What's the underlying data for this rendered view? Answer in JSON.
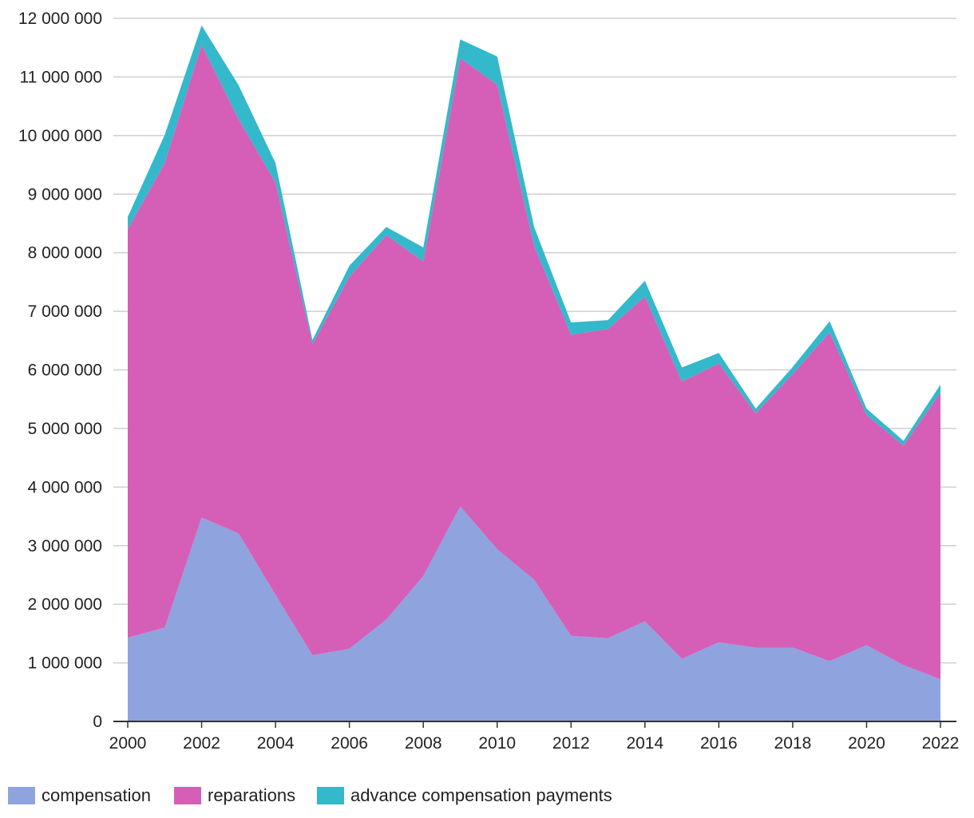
{
  "chart_data": {
    "type": "area",
    "stacked": true,
    "title": "",
    "xlabel": "",
    "ylabel": "",
    "ylim": [
      0,
      12000000
    ],
    "grid": true,
    "legend_position": "bottom-left",
    "x": [
      2000,
      2001,
      2002,
      2003,
      2004,
      2005,
      2006,
      2007,
      2008,
      2009,
      2010,
      2011,
      2012,
      2013,
      2014,
      2015,
      2016,
      2017,
      2018,
      2019,
      2020,
      2021,
      2022
    ],
    "x_tick_labels": [
      "2000",
      "2002",
      "2004",
      "2006",
      "2008",
      "2010",
      "2012",
      "2014",
      "2016",
      "2018",
      "2020",
      "2022"
    ],
    "y_ticks": [
      0,
      1000000,
      2000000,
      3000000,
      4000000,
      5000000,
      6000000,
      7000000,
      8000000,
      9000000,
      10000000,
      11000000,
      12000000
    ],
    "y_tick_labels": [
      "0",
      "1 000 000",
      "2 000 000",
      "3 000 000",
      "4 000 000",
      "5 000 000",
      "6 000 000",
      "7 000 000",
      "8 000 000",
      "9 000 000",
      "10 000 000",
      "11 000 000",
      "12 000 000"
    ],
    "series": [
      {
        "name": "compensation",
        "color": "#8fa3df",
        "values": [
          1430000,
          1600000,
          3480000,
          3210000,
          2160000,
          1130000,
          1240000,
          1740000,
          2480000,
          3670000,
          2940000,
          2420000,
          1460000,
          1420000,
          1710000,
          1070000,
          1350000,
          1260000,
          1260000,
          1030000,
          1300000,
          960000,
          720000
        ]
      },
      {
        "name": "reparations",
        "color": "#d55fb7",
        "values": [
          6970000,
          7930000,
          8070000,
          7070000,
          7040000,
          5310000,
          6350000,
          6560000,
          5370000,
          7650000,
          7930000,
          5700000,
          5140000,
          5280000,
          5540000,
          4730000,
          4760000,
          4000000,
          4670000,
          5610000,
          3930000,
          3750000,
          4890000
        ]
      },
      {
        "name": "advance compensation payments",
        "color": "#34b8cb",
        "values": [
          210000,
          480000,
          330000,
          580000,
          330000,
          70000,
          190000,
          140000,
          240000,
          320000,
          480000,
          320000,
          210000,
          150000,
          270000,
          240000,
          180000,
          80000,
          120000,
          190000,
          110000,
          80000,
          140000
        ]
      }
    ]
  }
}
